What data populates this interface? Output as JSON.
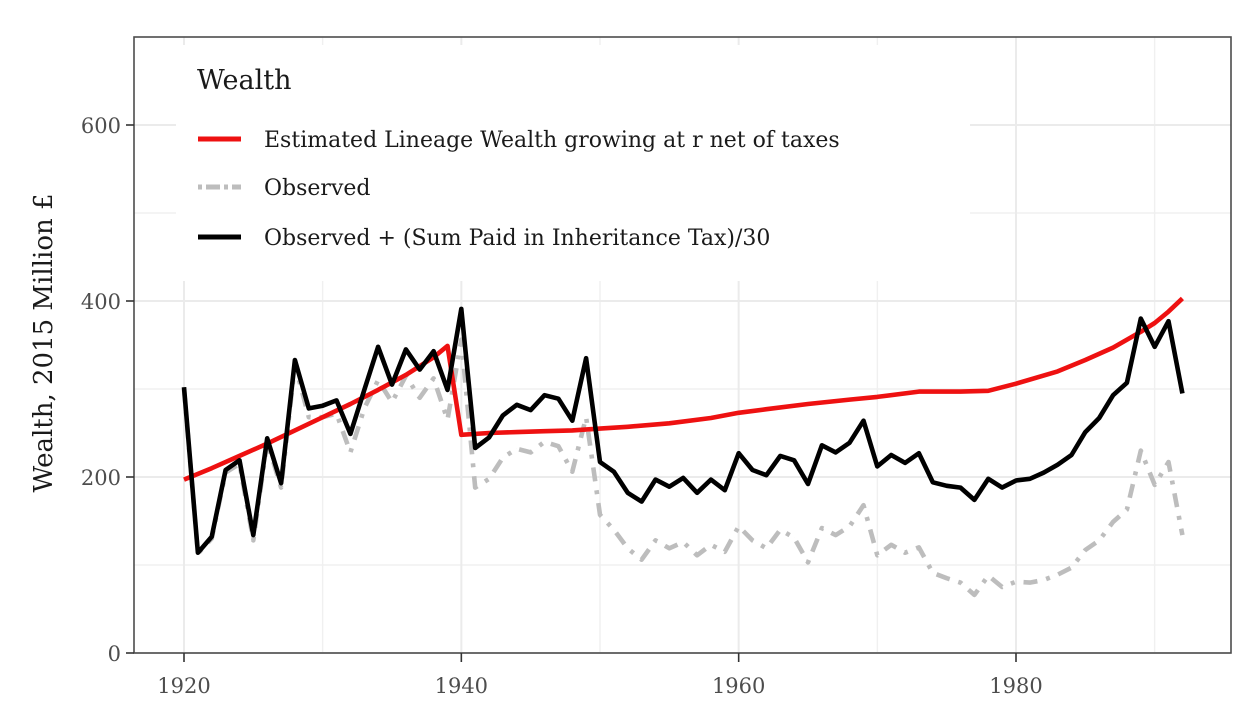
{
  "chart_data": {
    "type": "line",
    "title": "",
    "xlabel": "",
    "ylabel": "Wealth, 2015 Million £",
    "xlim": [
      1916.5,
      1995.5
    ],
    "ylim": [
      0,
      700
    ],
    "x_ticks": [
      1920,
      1940,
      1960,
      1980
    ],
    "x_tick_labels": [
      "1920",
      "1940",
      "1960",
      "1980"
    ],
    "x_minor_ticks": [
      1930,
      1950,
      1970,
      1990
    ],
    "y_ticks": [
      0,
      200,
      400,
      600
    ],
    "y_tick_labels": [
      "0",
      "200",
      "400",
      "600"
    ],
    "y_minor_ticks": [
      100,
      300,
      500
    ],
    "grid": true,
    "legend": {
      "title": "Wealth",
      "position": "top-left"
    },
    "series": [
      {
        "name": "Estimated Lineage Wealth growing at r net of taxes",
        "color": "#ee1111",
        "style": "solid",
        "x": [
          1920,
          1922,
          1924,
          1926,
          1928,
          1930,
          1932,
          1934,
          1936,
          1938,
          1939,
          1940,
          1942,
          1944,
          1946,
          1948,
          1950,
          1952,
          1955,
          1958,
          1960,
          1962,
          1965,
          1968,
          1970,
          1973,
          1976,
          1978,
          1980,
          1983,
          1985,
          1987,
          1989,
          1990,
          1991,
          1992
        ],
        "y": [
          197,
          210,
          224,
          238,
          253,
          268,
          283,
          299,
          316,
          336,
          349,
          248,
          250,
          251,
          252,
          253,
          255,
          257,
          261,
          267,
          273,
          277,
          283,
          288,
          291,
          297,
          297,
          298,
          306,
          320,
          333,
          347,
          365,
          375,
          388,
          403
        ]
      },
      {
        "name": "Observed",
        "color": "#bdbdbd",
        "style": "dashdot",
        "x": [
          1920,
          1921,
          1922,
          1923,
          1924,
          1925,
          1926,
          1927,
          1928,
          1929,
          1930,
          1931,
          1932,
          1933,
          1934,
          1935,
          1936,
          1937,
          1938,
          1939,
          1940,
          1941,
          1942,
          1943,
          1944,
          1945,
          1946,
          1947,
          1948,
          1949,
          1950,
          1951,
          1952,
          1953,
          1954,
          1955,
          1956,
          1957,
          1958,
          1959,
          1960,
          1961,
          1962,
          1963,
          1964,
          1965,
          1966,
          1967,
          1968,
          1969,
          1970,
          1971,
          1972,
          1973,
          1974,
          1975,
          1976,
          1977,
          1978,
          1979,
          1980,
          1981,
          1982,
          1983,
          1984,
          1985,
          1986,
          1987,
          1988,
          1989,
          1990,
          1991,
          1992
        ],
        "y": [
          300,
          113,
          130,
          205,
          215,
          128,
          240,
          188,
          328,
          268,
          268,
          272,
          228,
          278,
          310,
          285,
          315,
          290,
          312,
          265,
          356,
          188,
          198,
          222,
          232,
          228,
          240,
          235,
          206,
          268,
          157,
          140,
          119,
          106,
          128,
          119,
          126,
          111,
          123,
          115,
          144,
          128,
          119,
          140,
          131,
          103,
          142,
          134,
          144,
          168,
          111,
          123,
          114,
          120,
          91,
          85,
          80,
          66,
          88,
          75,
          81,
          80,
          83,
          89,
          97,
          117,
          128,
          149,
          163,
          230,
          191,
          217,
          134
        ]
      },
      {
        "name": "Observed + (Sum Paid in Inheritance Tax)/30",
        "color": "#000000",
        "style": "solid",
        "x": [
          1920,
          1921,
          1922,
          1923,
          1924,
          1925,
          1926,
          1927,
          1928,
          1929,
          1930,
          1931,
          1932,
          1933,
          1934,
          1935,
          1936,
          1937,
          1938,
          1939,
          1940,
          1941,
          1942,
          1943,
          1944,
          1945,
          1946,
          1947,
          1948,
          1949,
          1950,
          1951,
          1952,
          1953,
          1954,
          1955,
          1956,
          1957,
          1958,
          1959,
          1960,
          1961,
          1962,
          1963,
          1964,
          1965,
          1966,
          1967,
          1968,
          1969,
          1970,
          1971,
          1972,
          1973,
          1974,
          1975,
          1976,
          1977,
          1978,
          1979,
          1980,
          1981,
          1982,
          1983,
          1984,
          1985,
          1986,
          1987,
          1988,
          1989,
          1990,
          1991,
          1992
        ],
        "y": [
          302,
          114,
          132,
          208,
          219,
          134,
          244,
          193,
          333,
          278,
          281,
          287,
          249,
          299,
          348,
          305,
          345,
          322,
          343,
          299,
          391,
          233,
          245,
          270,
          282,
          276,
          293,
          289,
          264,
          335,
          217,
          206,
          182,
          172,
          197,
          189,
          199,
          182,
          197,
          185,
          227,
          208,
          202,
          224,
          219,
          192,
          236,
          228,
          239,
          264,
          212,
          225,
          216,
          227,
          194,
          190,
          188,
          174,
          198,
          188,
          196,
          198,
          205,
          214,
          225,
          251,
          267,
          293,
          307,
          380,
          348,
          377,
          295
        ]
      }
    ]
  }
}
